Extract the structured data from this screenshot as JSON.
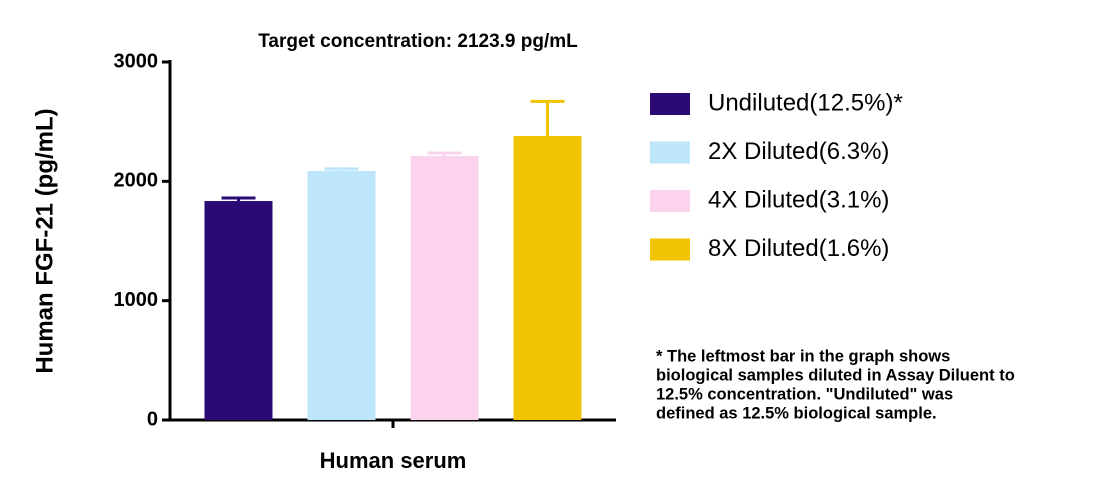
{
  "chart_data": {
    "type": "bar",
    "title": "Target concentration: 2123.9 pg/mL",
    "x_label": "Human serum",
    "y_label": "Human FGF-21 (pg/mL)",
    "categories": [
      "Human serum"
    ],
    "series": [
      {
        "name": "Undiluted(12.5%)*",
        "color": "#2b0a75",
        "values": [
          1835
        ],
        "errors": [
          25
        ]
      },
      {
        "name": "2X Diluted(6.3%)",
        "color": "#bde6fa",
        "values": [
          2087
        ],
        "errors": [
          17
        ]
      },
      {
        "name": "4X Diluted(3.1%)",
        "color": "#fbd3ef",
        "values": [
          2212
        ],
        "errors": [
          25
        ]
      },
      {
        "name": "8X Diluted(1.6%)",
        "color": "#f2c300",
        "values": [
          2380
        ],
        "errors": [
          290
        ]
      }
    ],
    "ylim": [
      0,
      3000
    ],
    "yticks": [
      0,
      1000,
      2000,
      3000
    ],
    "annotation": [
      "* The leftmost bar in the graph shows",
      "biological samples diluted in Assay Diluent to",
      "12.5% concentration. \"Undiluted\" was",
      "defined as 12.5% biological sample."
    ]
  }
}
